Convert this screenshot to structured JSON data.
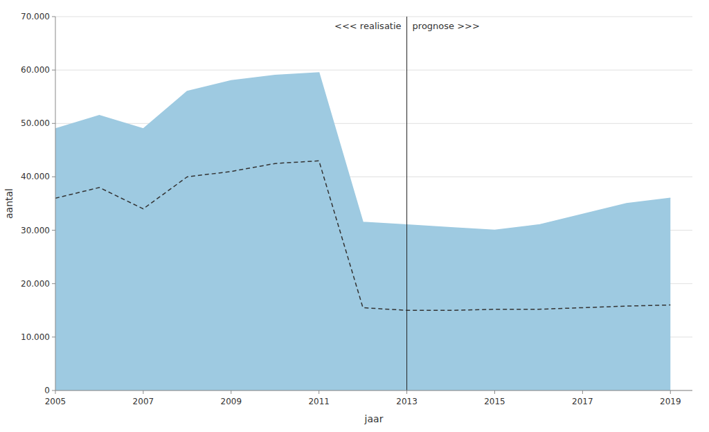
{
  "chart_data": {
    "type": "area",
    "x": [
      2005,
      2006,
      2007,
      2008,
      2009,
      2010,
      2011,
      2012,
      2013,
      2014,
      2015,
      2016,
      2017,
      2018,
      2019
    ],
    "series": [
      {
        "type": "area",
        "color": "#9ecae1",
        "values": [
          49000,
          51500,
          49000,
          56000,
          58000,
          59000,
          59500,
          31500,
          31000,
          30500,
          30000,
          31000,
          33000,
          35000,
          36000
        ]
      },
      {
        "type": "line",
        "line_style": "dashed",
        "color": "#333333",
        "values": [
          36000,
          38000,
          34000,
          40000,
          41000,
          42500,
          43000,
          15500,
          15000,
          15000,
          15200,
          15200,
          15500,
          15800,
          16000
        ]
      }
    ],
    "split_x": 2013,
    "annotations": [
      "<<< realisatie",
      "prognose >>>"
    ],
    "xlabel": "jaar",
    "ylabel": "aantal",
    "xlim": [
      2005,
      2019.5
    ],
    "ylim": [
      0,
      70000
    ],
    "xticks": [
      2005,
      2007,
      2009,
      2011,
      2013,
      2015,
      2017,
      2019
    ],
    "yticks": [
      0,
      {
        "value": 10000,
        "label": "10.000"
      },
      {
        "value": 20000,
        "label": "20.000"
      },
      {
        "value": 30000,
        "label": "30.000"
      },
      {
        "value": 40000,
        "label": "40.000"
      },
      {
        "value": 50000,
        "label": "50.000"
      },
      {
        "value": 60000,
        "label": "60.000"
      },
      {
        "value": 70000,
        "label": "70.000"
      }
    ],
    "grid": true
  }
}
